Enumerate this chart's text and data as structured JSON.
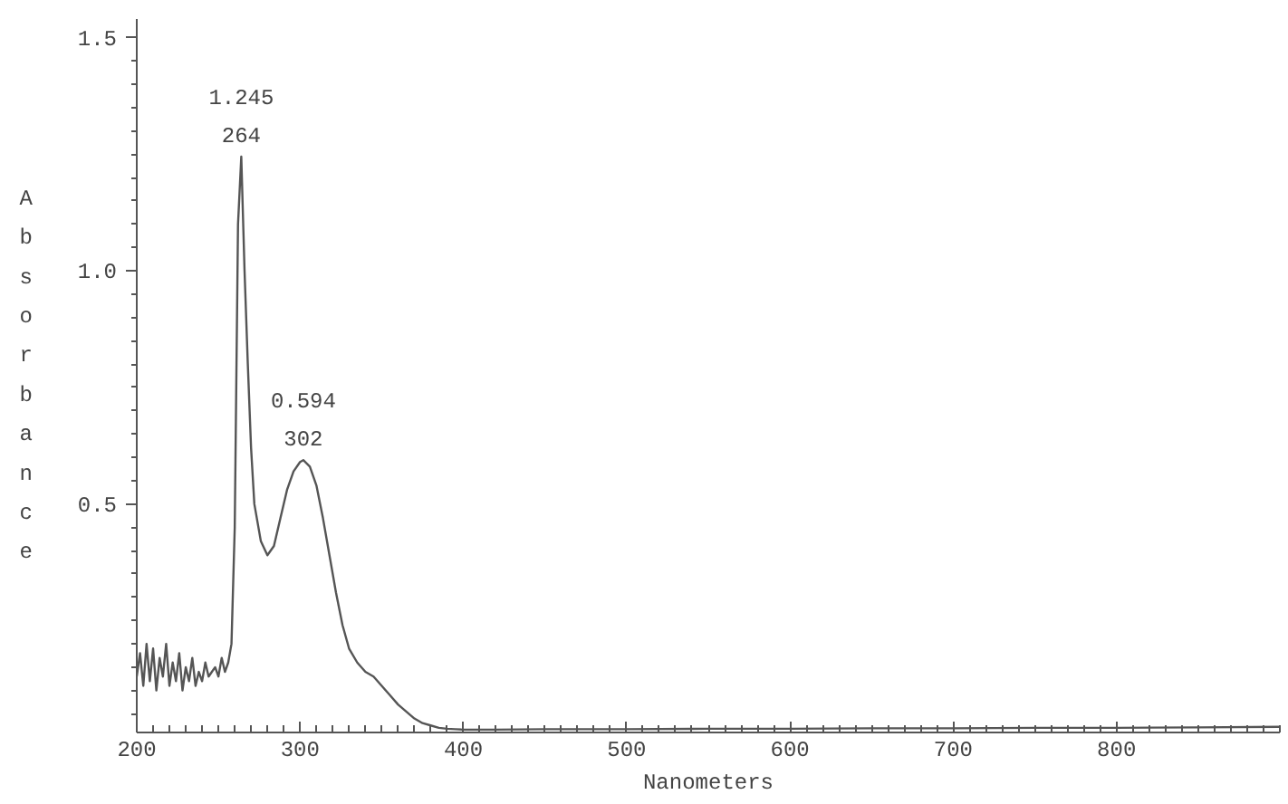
{
  "chart_data": {
    "type": "line",
    "xlabel": "Nanometers",
    "ylabel": "Absorbance",
    "x": [
      200,
      202,
      204,
      206,
      208,
      210,
      212,
      214,
      216,
      218,
      220,
      222,
      224,
      226,
      228,
      230,
      232,
      234,
      236,
      238,
      240,
      242,
      244,
      246,
      248,
      250,
      252,
      254,
      256,
      258,
      260,
      262,
      264,
      266,
      268,
      270,
      272,
      276,
      280,
      284,
      288,
      292,
      296,
      300,
      302,
      306,
      310,
      314,
      318,
      322,
      326,
      330,
      335,
      340,
      345,
      350,
      355,
      360,
      365,
      370,
      375,
      380,
      385,
      390,
      395,
      400,
      420,
      450,
      500,
      550,
      600,
      650,
      700,
      750,
      800,
      850,
      900
    ],
    "series": [
      {
        "color": "#555555",
        "values": [
          0.13,
          0.18,
          0.11,
          0.2,
          0.12,
          0.19,
          0.1,
          0.17,
          0.13,
          0.2,
          0.11,
          0.16,
          0.12,
          0.18,
          0.1,
          0.15,
          0.12,
          0.17,
          0.11,
          0.14,
          0.12,
          0.16,
          0.13,
          0.14,
          0.15,
          0.13,
          0.17,
          0.14,
          0.16,
          0.2,
          0.45,
          1.1,
          1.245,
          1.0,
          0.8,
          0.62,
          0.5,
          0.42,
          0.39,
          0.41,
          0.47,
          0.53,
          0.57,
          0.59,
          0.594,
          0.58,
          0.54,
          0.47,
          0.39,
          0.31,
          0.24,
          0.19,
          0.16,
          0.14,
          0.13,
          0.11,
          0.09,
          0.07,
          0.055,
          0.04,
          0.03,
          0.025,
          0.02,
          0.018,
          0.017,
          0.016,
          0.016,
          0.017,
          0.017,
          0.018,
          0.018,
          0.019,
          0.019,
          0.02,
          0.02,
          0.021,
          0.022
        ]
      }
    ],
    "xlim": [
      200,
      900
    ],
    "ylim": [
      0.01,
      1.54
    ],
    "xticks": [
      200,
      300,
      400,
      500,
      600,
      700,
      800
    ],
    "yticks": [
      0.5,
      {
        "value": 1,
        "label": "1.0"
      },
      1.5
    ],
    "annotations": [
      {
        "text": "1.245\n264",
        "x": 264,
        "y": 1.245
      },
      {
        "text": "0.594\n302",
        "x": 302,
        "y": 0.594
      }
    ],
    "grid": false,
    "marker": "none",
    "line_style": "solid"
  }
}
